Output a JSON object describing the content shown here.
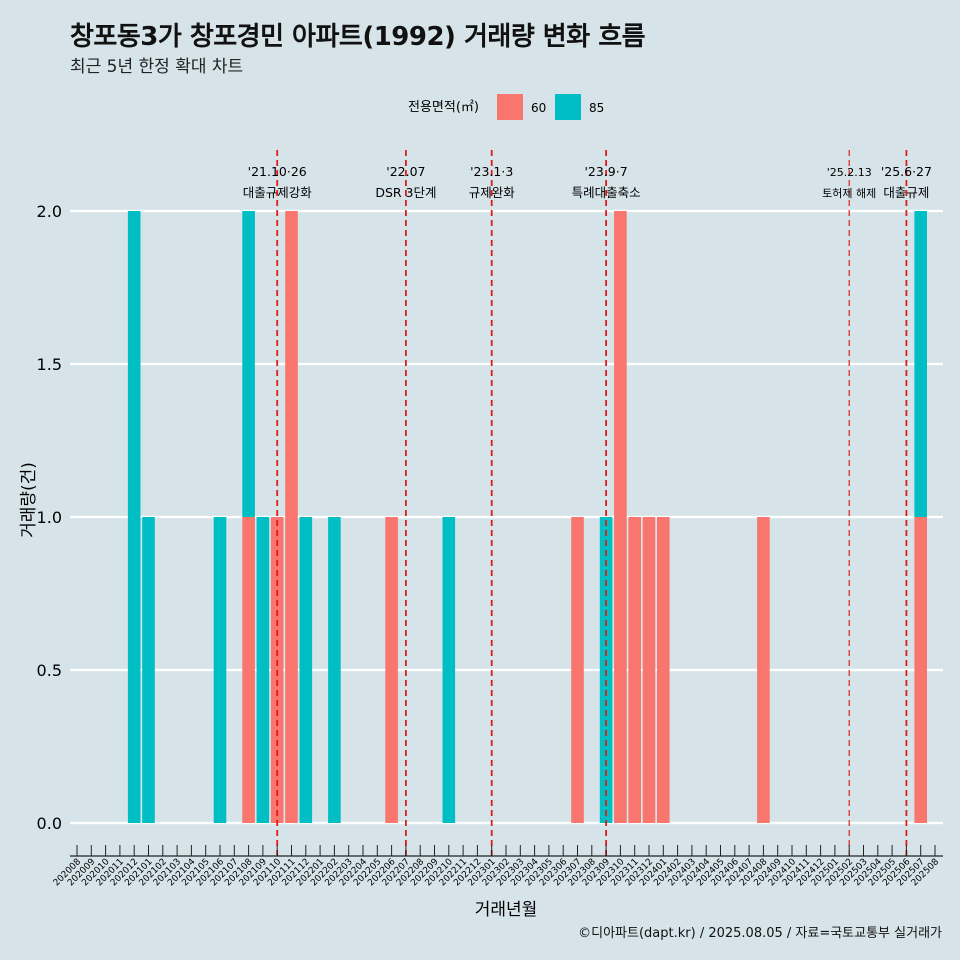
{
  "title": "창포동3가 창포경민 아파트(1992) 거래량 변화 흐름",
  "subtitle": "최근 5년 한정 확대 차트",
  "caption": "©디아파트(dapt.kr) / 2025.08.05 / 자료=국토교통부 실거래가",
  "chart_data": {
    "type": "bar",
    "stacked": true,
    "xlabel": "거래년월",
    "ylabel": "거래량(건)",
    "ylim": [
      -0.15,
      2.15
    ],
    "yticks": [
      "0.0",
      "0.5",
      "1.0",
      "1.5",
      "2.0"
    ],
    "grid": "horizontal",
    "legend": {
      "title": "전용면적(㎡)",
      "position": "top"
    },
    "categories": [
      "202008",
      "202009",
      "202010",
      "202011",
      "202012",
      "202101",
      "202102",
      "202103",
      "202104",
      "202105",
      "202106",
      "202107",
      "202108",
      "202109",
      "202110",
      "202111",
      "202112",
      "202201",
      "202202",
      "202203",
      "202204",
      "202205",
      "202206",
      "202207",
      "202208",
      "202209",
      "202210",
      "202211",
      "202212",
      "202301",
      "202302",
      "202303",
      "202304",
      "202305",
      "202306",
      "202307",
      "202308",
      "202309",
      "202310",
      "202311",
      "202312",
      "202401",
      "202402",
      "202403",
      "202404",
      "202405",
      "202406",
      "202407",
      "202408",
      "202409",
      "202410",
      "202411",
      "202412",
      "202501",
      "202502",
      "202503",
      "202504",
      "202505",
      "202506",
      "202507",
      "202508"
    ],
    "series": [
      {
        "name": "60",
        "color": "#f8766d",
        "values": [
          0,
          0,
          0,
          0,
          0,
          0,
          0,
          0,
          0,
          0,
          0,
          0,
          1,
          0,
          1,
          2,
          0,
          0,
          0,
          0,
          0,
          0,
          1,
          0,
          0,
          0,
          0,
          0,
          0,
          0,
          0,
          0,
          0,
          0,
          0,
          1,
          0,
          0,
          2,
          1,
          1,
          1,
          0,
          0,
          0,
          0,
          0,
          0,
          1,
          0,
          0,
          0,
          0,
          0,
          0,
          0,
          0,
          0,
          0,
          1,
          0
        ]
      },
      {
        "name": "85",
        "color": "#00bfc4",
        "values": [
          0,
          0,
          0,
          0,
          2,
          1,
          0,
          0,
          0,
          0,
          1,
          0,
          1,
          1,
          0,
          0,
          1,
          0,
          1,
          0,
          0,
          0,
          0,
          0,
          0,
          0,
          1,
          0,
          0,
          0,
          0,
          0,
          0,
          0,
          0,
          0,
          0,
          1,
          0,
          0,
          0,
          0,
          0,
          0,
          0,
          0,
          0,
          0,
          0,
          0,
          0,
          0,
          0,
          0,
          0,
          0,
          0,
          0,
          0,
          1,
          0
        ]
      }
    ],
    "annotations": [
      {
        "at": "202110",
        "date": "'21.10·26",
        "label": "대출규제강화",
        "size": "normal"
      },
      {
        "at": "202207",
        "date": "'22.07",
        "label": "DSR 3단계",
        "size": "normal"
      },
      {
        "at": "202301",
        "date": "'23.1·3",
        "label": "규제완화",
        "size": "normal"
      },
      {
        "at": "202309",
        "date": "'23.9·7",
        "label": "특례대출축소",
        "size": "normal"
      },
      {
        "at": "202502",
        "date": "'25.2.13",
        "label": "토허제 해제",
        "size": "small"
      },
      {
        "at": "202506",
        "date": "'25.6·27",
        "label": "대출규제",
        "size": "normal"
      }
    ]
  }
}
